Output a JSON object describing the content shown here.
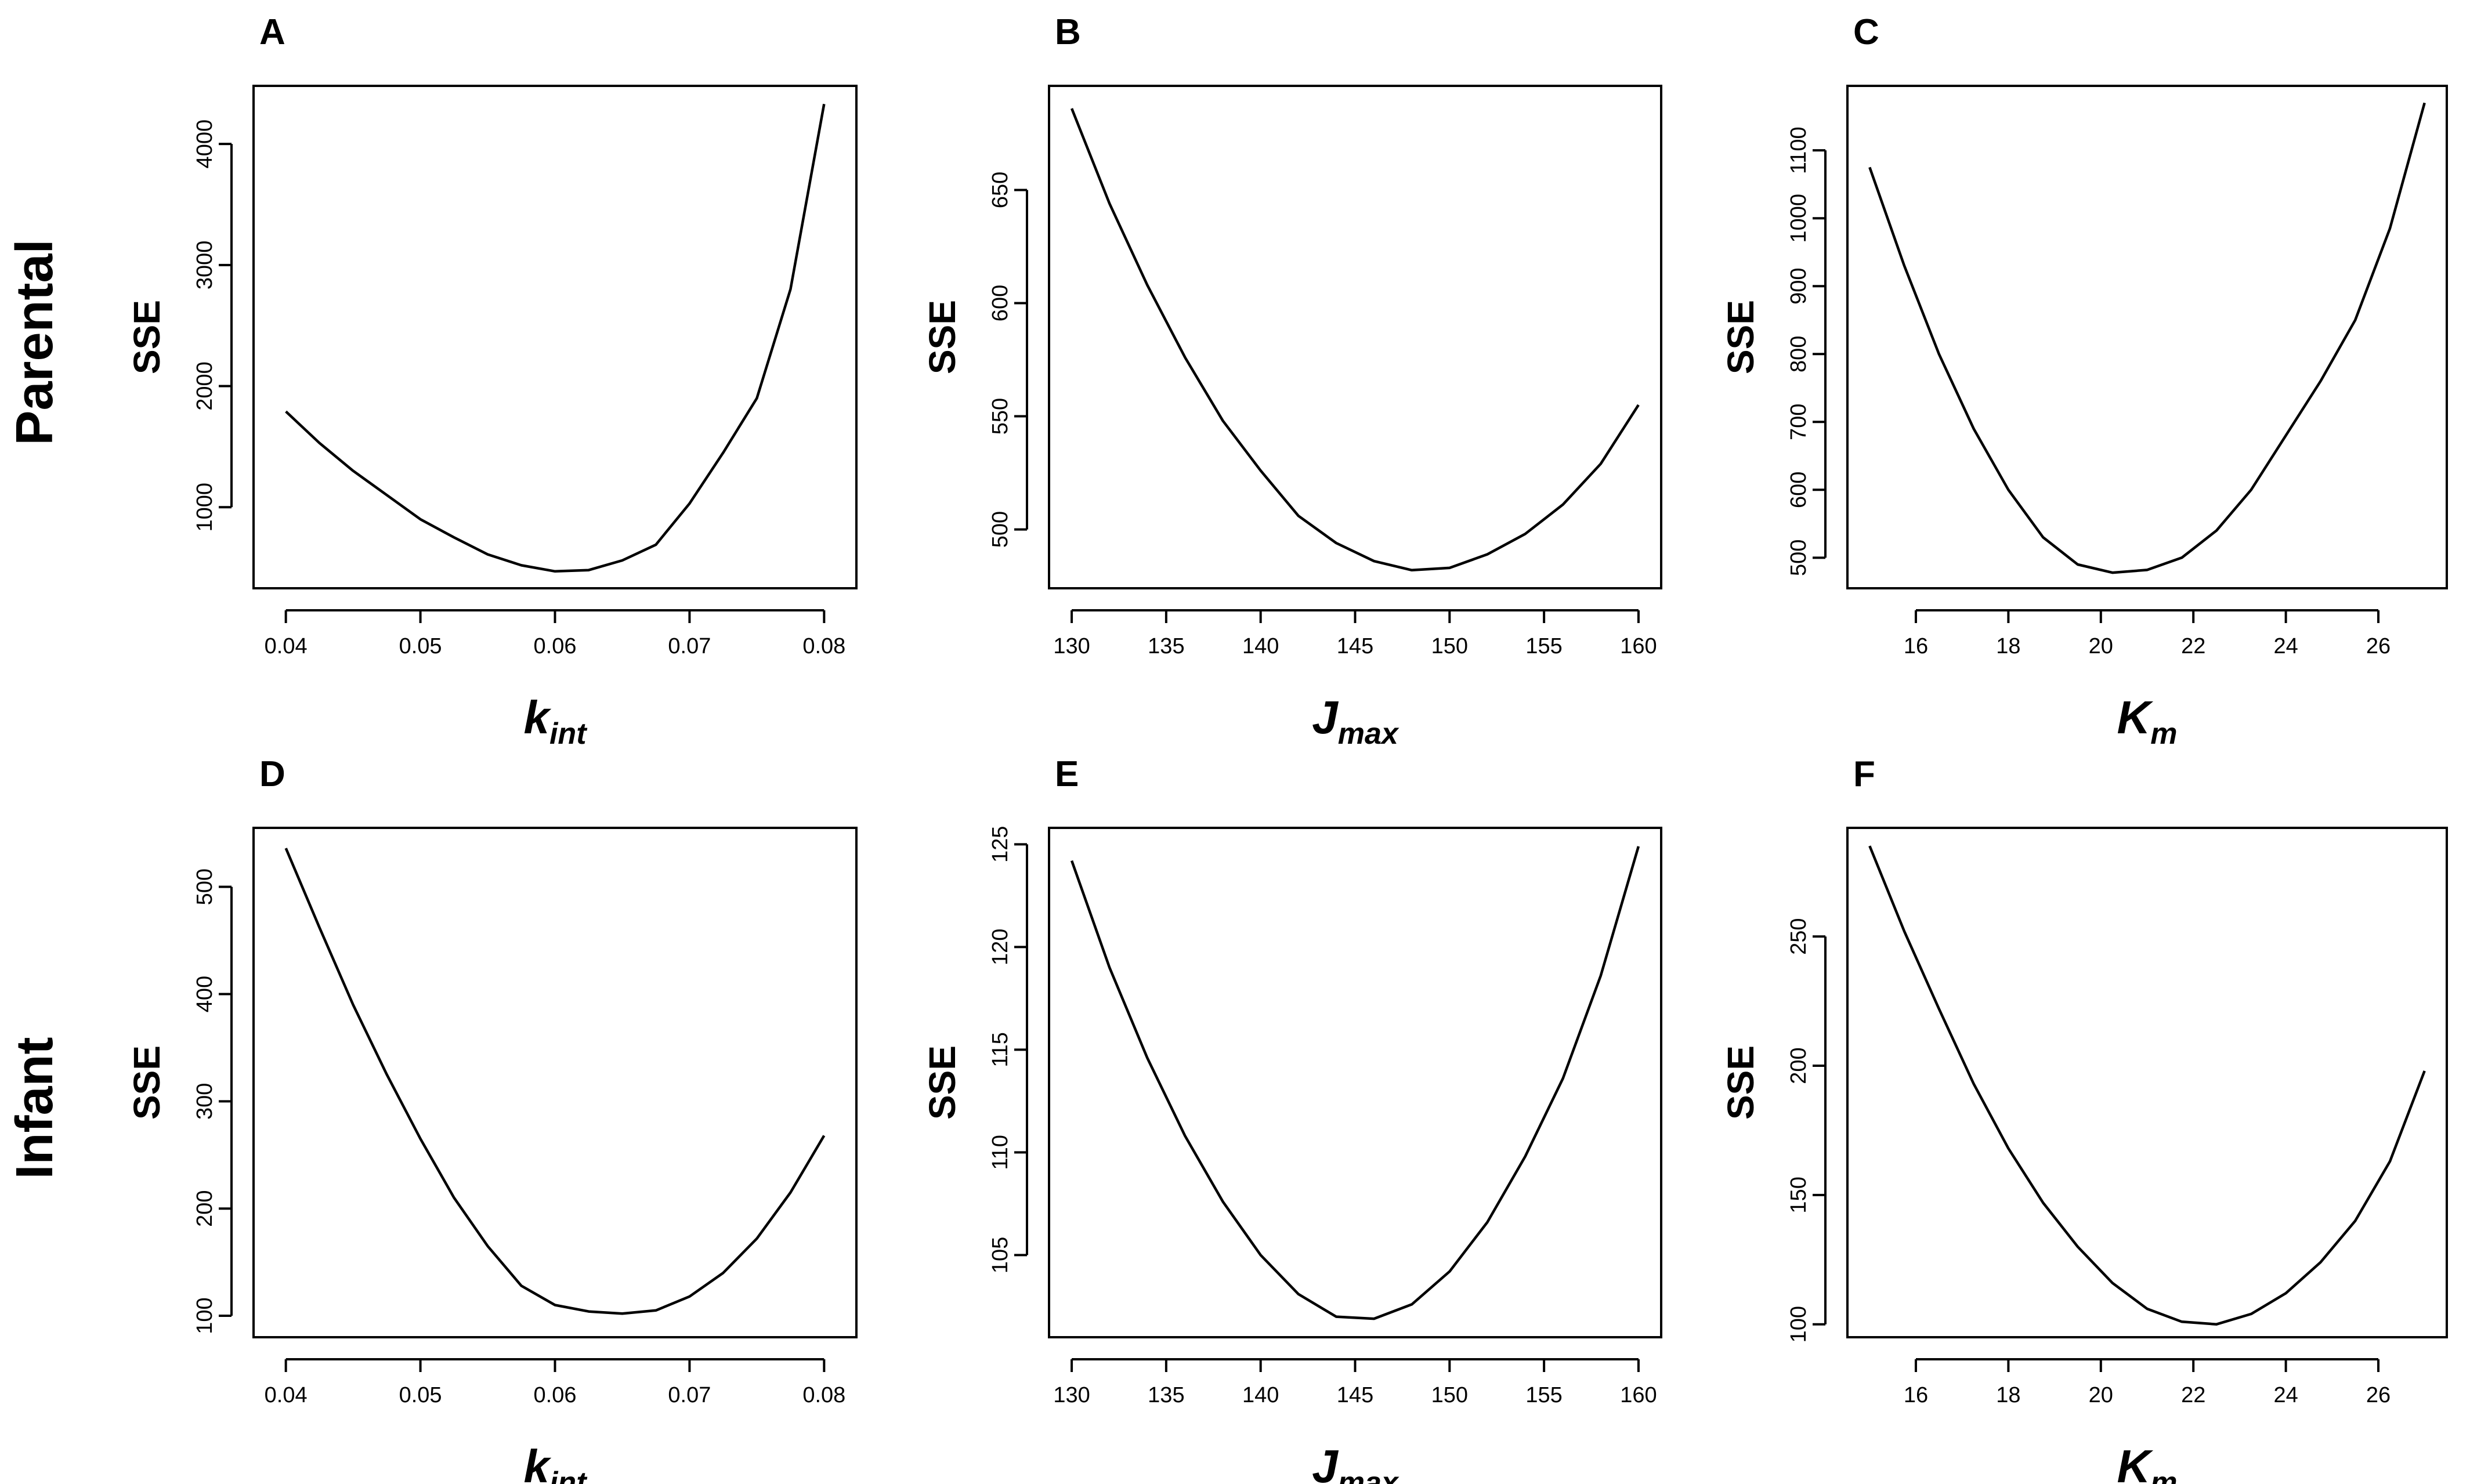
{
  "row_labels": [
    "Parental",
    "Infant"
  ],
  "chart_data": [
    {
      "panel": "A",
      "type": "line",
      "xlabel": "k",
      "xlabel_sub": "int",
      "ylabel": "SSE",
      "xlim": [
        0.0376,
        0.0824
      ],
      "ylim": [
        330,
        4480
      ],
      "xticks": [
        0.04,
        0.05,
        0.06,
        0.07,
        0.08
      ],
      "xtick_labels": [
        "0.04",
        "0.05",
        "0.06",
        "0.07",
        "0.08"
      ],
      "yticks": [
        1000,
        2000,
        3000,
        4000
      ],
      "ytick_labels": [
        "1000",
        "2000",
        "3000",
        "4000"
      ],
      "x": [
        0.04,
        0.0425,
        0.045,
        0.0475,
        0.05,
        0.0525,
        0.055,
        0.0575,
        0.06,
        0.0625,
        0.065,
        0.0675,
        0.07,
        0.0725,
        0.075,
        0.0775,
        0.08
      ],
      "y": [
        1790,
        1530,
        1300,
        1100,
        900,
        750,
        610,
        520,
        470,
        480,
        560,
        690,
        1030,
        1450,
        1900,
        2800,
        4330
      ]
    },
    {
      "panel": "B",
      "type": "line",
      "xlabel": "J",
      "xlabel_sub": "max",
      "ylabel": "SSE",
      "xlim": [
        128.8,
        161.2
      ],
      "ylim": [
        474,
        696
      ],
      "xticks": [
        130,
        135,
        140,
        145,
        150,
        155,
        160
      ],
      "xtick_labels": [
        "130",
        "135",
        "140",
        "145",
        "150",
        "155",
        "160"
      ],
      "yticks": [
        500,
        550,
        600,
        650
      ],
      "ytick_labels": [
        "500",
        "550",
        "600",
        "650"
      ],
      "x": [
        130,
        132,
        134,
        136,
        138,
        140,
        142,
        144,
        146,
        148,
        150,
        152,
        154,
        156,
        158,
        160
      ],
      "y": [
        686,
        644,
        608,
        576,
        548,
        526,
        506,
        494,
        486,
        482,
        483,
        489,
        498,
        511,
        529,
        555
      ]
    },
    {
      "panel": "C",
      "type": "line",
      "xlabel": "K",
      "xlabel_sub": "m",
      "ylabel": "SSE",
      "xlim": [
        14.52,
        27.48
      ],
      "ylim": [
        455,
        1195
      ],
      "xticks": [
        16,
        18,
        20,
        22,
        24,
        26
      ],
      "xtick_labels": [
        "16",
        "18",
        "20",
        "22",
        "24",
        "26"
      ],
      "yticks": [
        500,
        600,
        700,
        800,
        900,
        1000,
        1100
      ],
      "ytick_labels": [
        "500",
        "600",
        "700",
        "800",
        "900",
        "1000",
        "1100"
      ],
      "x": [
        15,
        15.75,
        16.5,
        17.25,
        18,
        18.75,
        19.5,
        20.25,
        21,
        21.75,
        22.5,
        23.25,
        24,
        24.75,
        25.5,
        26.25,
        27
      ],
      "y": [
        1075,
        930,
        800,
        690,
        600,
        530,
        490,
        478,
        482,
        500,
        540,
        600,
        680,
        760,
        850,
        985,
        1170
      ]
    },
    {
      "panel": "D",
      "type": "line",
      "xlabel": "k",
      "xlabel_sub": "int",
      "ylabel": "SSE",
      "xlim": [
        0.0376,
        0.0824
      ],
      "ylim": [
        80,
        555
      ],
      "xticks": [
        0.04,
        0.05,
        0.06,
        0.07,
        0.08
      ],
      "xtick_labels": [
        "0.04",
        "0.05",
        "0.06",
        "0.07",
        "0.08"
      ],
      "yticks": [
        100,
        200,
        300,
        400,
        500
      ],
      "ytick_labels": [
        "100",
        "200",
        "300",
        "400",
        "500"
      ],
      "x": [
        0.04,
        0.0425,
        0.045,
        0.0475,
        0.05,
        0.0525,
        0.055,
        0.0575,
        0.06,
        0.0625,
        0.065,
        0.0675,
        0.07,
        0.0725,
        0.075,
        0.0775,
        0.08
      ],
      "y": [
        536,
        462,
        390,
        325,
        265,
        210,
        165,
        128,
        110,
        104,
        102,
        105,
        118,
        140,
        172,
        215,
        268
      ]
    },
    {
      "panel": "E",
      "type": "line",
      "xlabel": "J",
      "xlabel_sub": "max",
      "ylabel": "SSE",
      "xlim": [
        128.8,
        161.2
      ],
      "ylim": [
        101.0,
        125.8
      ],
      "xticks": [
        130,
        135,
        140,
        145,
        150,
        155,
        160
      ],
      "xtick_labels": [
        "130",
        "135",
        "140",
        "145",
        "150",
        "155",
        "160"
      ],
      "yticks": [
        105,
        110,
        115,
        120,
        125
      ],
      "ytick_labels": [
        "105",
        "110",
        "115",
        "120",
        "125"
      ],
      "x": [
        130,
        132,
        134,
        136,
        138,
        140,
        142,
        144,
        146,
        148,
        150,
        152,
        154,
        156,
        158,
        160
      ],
      "y": [
        124.2,
        119.0,
        114.6,
        110.8,
        107.6,
        105.0,
        103.1,
        102.0,
        101.9,
        102.6,
        104.2,
        106.6,
        109.8,
        113.6,
        118.6,
        124.9
      ]
    },
    {
      "panel": "F",
      "type": "line",
      "xlabel": "K",
      "xlabel_sub": "m",
      "ylabel": "SSE",
      "xlim": [
        14.52,
        27.48
      ],
      "ylim": [
        95,
        292
      ],
      "xticks": [
        16,
        18,
        20,
        22,
        24,
        26
      ],
      "xtick_labels": [
        "16",
        "18",
        "20",
        "22",
        "24",
        "26"
      ],
      "yticks": [
        100,
        150,
        200,
        250
      ],
      "ytick_labels": [
        "100",
        "150",
        "200",
        "250"
      ],
      "x": [
        15,
        15.75,
        16.5,
        17.25,
        18,
        18.75,
        19.5,
        20.25,
        21,
        21.75,
        22.5,
        23.25,
        24,
        24.75,
        25.5,
        26.25,
        27
      ],
      "y": [
        285,
        252,
        222,
        193,
        168,
        147,
        130,
        116,
        106,
        101,
        100,
        104,
        112,
        124,
        140,
        163,
        198
      ]
    }
  ]
}
